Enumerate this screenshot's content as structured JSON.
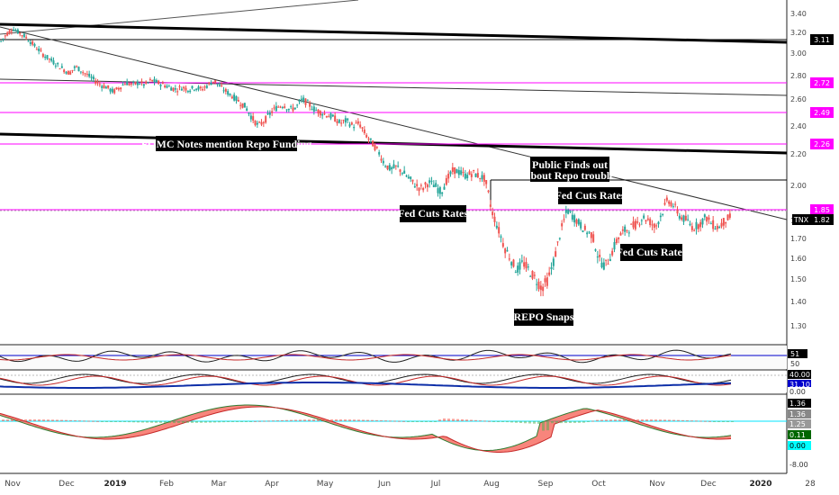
{
  "chart_data": {
    "type": "candlestick",
    "symbol": "TNX",
    "price_ticks": [
      "3.40",
      "3.20",
      "3.00",
      "2.80",
      "2.60",
      "2.40",
      "2.20",
      "2.00",
      "1.80",
      "1.70",
      "1.60",
      "1.50",
      "1.40",
      "1.30"
    ],
    "x_ticks": [
      {
        "label": "Nov",
        "bold": false
      },
      {
        "label": "Dec",
        "bold": false
      },
      {
        "label": "2019",
        "bold": true
      },
      {
        "label": "Feb",
        "bold": false
      },
      {
        "label": "Mar",
        "bold": false
      },
      {
        "label": "Apr",
        "bold": false
      },
      {
        "label": "May",
        "bold": false
      },
      {
        "label": "Jun",
        "bold": false
      },
      {
        "label": "Jul",
        "bold": false
      },
      {
        "label": "Aug",
        "bold": false
      },
      {
        "label": "Sep",
        "bold": false
      },
      {
        "label": "Oct",
        "bold": false
      },
      {
        "label": "Nov",
        "bold": false
      },
      {
        "label": "Dec",
        "bold": false
      },
      {
        "label": "2020",
        "bold": true
      },
      {
        "label": "28",
        "bold": false
      }
    ],
    "price_badges": [
      {
        "label": "3.11",
        "bg": "#000000",
        "fg": "#ffffff"
      },
      {
        "label": "2.72",
        "bg": "#ff00ff",
        "fg": "#ffffff"
      },
      {
        "label": "2.49",
        "bg": "#ff00ff",
        "fg": "#ffffff"
      },
      {
        "label": "2.26",
        "bg": "#ff00ff",
        "fg": "#ffffff"
      },
      {
        "label": "1.85",
        "bg": "#ff00ff",
        "fg": "#ffffff"
      },
      {
        "label": "1.82",
        "bg": "#000000",
        "fg": "#ffffff"
      }
    ],
    "annotations": [
      "FOMC Notes mention Repo Funding",
      "Fed Cuts Rates",
      "Public Finds out",
      "about Repo trouble",
      "Fed Cuts Rates",
      "Fed Cuts Rates",
      "REPO Snaps"
    ],
    "ind1_badges": [
      {
        "label": "51",
        "bg": "#000000",
        "fg": "#ffffff"
      },
      {
        "label": "50",
        "bg": "#ffffff",
        "fg": "#333333"
      }
    ],
    "ind2_badges": [
      {
        "label": "40.00",
        "bg": "#000000",
        "fg": "#ffffff"
      },
      {
        "label": "31.10",
        "bg": "#0000cc",
        "fg": "#ffffff"
      },
      {
        "label": "0.00",
        "bg": "#ffffff",
        "fg": "#333333"
      }
    ],
    "ind3_badges": [
      {
        "label": "1.36",
        "bg": "#000000",
        "fg": "#ffffff"
      },
      {
        "label": "1.36",
        "bg": "#888888",
        "fg": "#ffffff"
      },
      {
        "label": "1.25",
        "bg": "#999999",
        "fg": "#ffffff"
      },
      {
        "label": "0.11",
        "bg": "#006600",
        "fg": "#ffffff"
      },
      {
        "label": "0.00",
        "bg": "#00ffff",
        "fg": "#000000"
      },
      {
        "label": "-8.00",
        "bg": "#ffffff",
        "fg": "#333333"
      }
    ],
    "colors": {
      "up": "#26a69a",
      "down": "#ef5350",
      "level": "#ff00ff",
      "macd_green": "#4caf50",
      "macd_red": "#f44336"
    },
    "close_path": [
      [
        0,
        3.1
      ],
      [
        7,
        3.18
      ],
      [
        14,
        3.24
      ],
      [
        21,
        3.2
      ],
      [
        28,
        3.16
      ],
      [
        35,
        3.1
      ],
      [
        42,
        3.04
      ],
      [
        49,
        2.98
      ],
      [
        56,
        2.94
      ],
      [
        63,
        2.9
      ],
      [
        70,
        2.86
      ],
      [
        77,
        2.82
      ],
      [
        84,
        2.88
      ],
      [
        91,
        2.84
      ],
      [
        98,
        2.8
      ],
      [
        105,
        2.76
      ],
      [
        112,
        2.72
      ],
      [
        119,
        2.7
      ],
      [
        126,
        2.66
      ],
      [
        133,
        2.7
      ],
      [
        140,
        2.74
      ],
      [
        147,
        2.72
      ],
      [
        154,
        2.74
      ],
      [
        161,
        2.72
      ],
      [
        168,
        2.76
      ],
      [
        175,
        2.74
      ],
      [
        182,
        2.72
      ],
      [
        189,
        2.7
      ],
      [
        196,
        2.68
      ],
      [
        203,
        2.7
      ],
      [
        210,
        2.68
      ],
      [
        217,
        2.7
      ],
      [
        224,
        2.68
      ],
      [
        231,
        2.72
      ],
      [
        238,
        2.76
      ],
      [
        245,
        2.7
      ],
      [
        252,
        2.66
      ],
      [
        259,
        2.62
      ],
      [
        266,
        2.58
      ],
      [
        273,
        2.54
      ],
      [
        280,
        2.46
      ],
      [
        287,
        2.4
      ],
      [
        294,
        2.44
      ],
      [
        301,
        2.5
      ],
      [
        308,
        2.54
      ],
      [
        315,
        2.56
      ],
      [
        322,
        2.52
      ],
      [
        329,
        2.54
      ],
      [
        336,
        2.6
      ],
      [
        343,
        2.56
      ],
      [
        350,
        2.52
      ],
      [
        357,
        2.5
      ],
      [
        364,
        2.48
      ],
      [
        371,
        2.46
      ],
      [
        378,
        2.42
      ],
      [
        385,
        2.44
      ],
      [
        392,
        2.4
      ],
      [
        399,
        2.42
      ],
      [
        406,
        2.34
      ],
      [
        413,
        2.28
      ],
      [
        420,
        2.22
      ],
      [
        427,
        2.14
      ],
      [
        434,
        2.1
      ],
      [
        441,
        2.12
      ],
      [
        448,
        2.08
      ],
      [
        455,
        2.04
      ],
      [
        462,
        2.0
      ],
      [
        469,
        1.98
      ],
      [
        476,
        2.02
      ],
      [
        483,
        2.0
      ],
      [
        490,
        1.96
      ],
      [
        497,
        2.04
      ],
      [
        504,
        2.1
      ],
      [
        511,
        2.08
      ],
      [
        518,
        2.06
      ],
      [
        525,
        2.08
      ],
      [
        532,
        2.06
      ],
      [
        539,
        2.04
      ],
      [
        546,
        1.86
      ],
      [
        553,
        1.76
      ],
      [
        560,
        1.66
      ],
      [
        567,
        1.6
      ],
      [
        574,
        1.54
      ],
      [
        581,
        1.58
      ],
      [
        588,
        1.54
      ],
      [
        595,
        1.5
      ],
      [
        602,
        1.46
      ],
      [
        609,
        1.5
      ],
      [
        616,
        1.6
      ],
      [
        623,
        1.74
      ],
      [
        630,
        1.86
      ],
      [
        637,
        1.82
      ],
      [
        644,
        1.78
      ],
      [
        651,
        1.74
      ],
      [
        658,
        1.72
      ],
      [
        665,
        1.6
      ],
      [
        672,
        1.56
      ],
      [
        679,
        1.62
      ],
      [
        686,
        1.7
      ],
      [
        693,
        1.74
      ],
      [
        700,
        1.76
      ],
      [
        707,
        1.78
      ],
      [
        714,
        1.82
      ],
      [
        721,
        1.8
      ],
      [
        728,
        1.76
      ],
      [
        735,
        1.84
      ],
      [
        742,
        1.92
      ],
      [
        749,
        1.88
      ],
      [
        756,
        1.82
      ],
      [
        763,
        1.8
      ],
      [
        770,
        1.76
      ],
      [
        777,
        1.78
      ],
      [
        784,
        1.82
      ],
      [
        791,
        1.78
      ],
      [
        798,
        1.76
      ],
      [
        805,
        1.8
      ],
      [
        812,
        1.82
      ]
    ]
  }
}
